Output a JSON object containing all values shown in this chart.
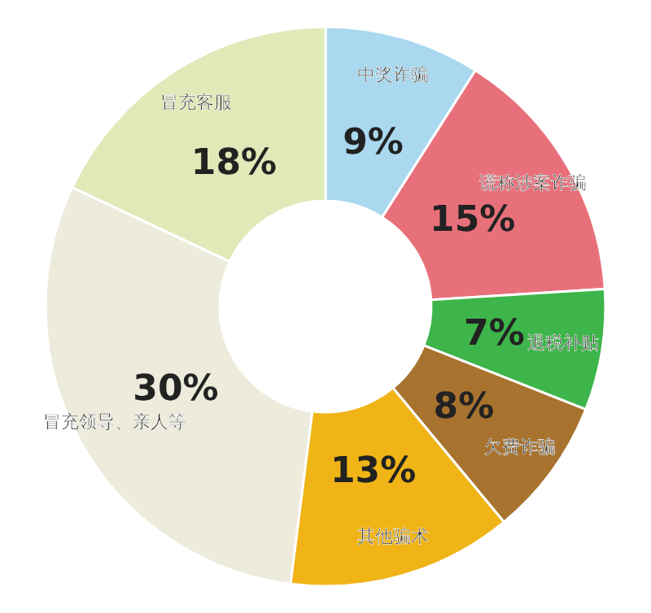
{
  "chart_data": {
    "type": "donut",
    "categories": [
      "中奖诈骗",
      "谎称涉案诈骗",
      "退税补贴",
      "欠费诈骗",
      "其他骗术",
      "冒充领导、亲人等",
      "冒充客服"
    ],
    "values": [
      9,
      15,
      7,
      8,
      13,
      30,
      18
    ],
    "value_labels": [
      "9%",
      "15%",
      "7%",
      "8%",
      "13%",
      "30%",
      "18%"
    ],
    "colors": [
      "#a9d8ef",
      "#e8707a",
      "#3db54a",
      "#a8732e",
      "#f0b417",
      "#ecebdc",
      "#dfeab8"
    ]
  }
}
